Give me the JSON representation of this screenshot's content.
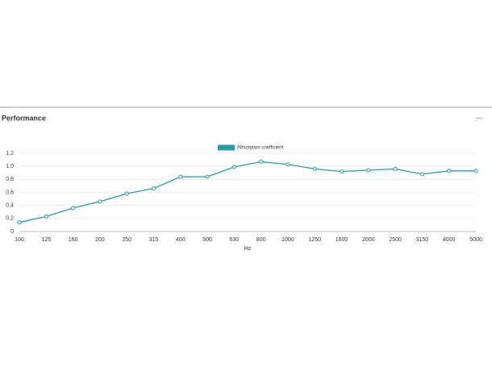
{
  "header": {
    "title": "Performance",
    "menu": "---"
  },
  "chart_data": {
    "type": "line",
    "xlabel": "Hz",
    "categories": [
      "100",
      "125",
      "160",
      "200",
      "250",
      "315",
      "400",
      "500",
      "630",
      "800",
      "1000",
      "1250",
      "1600",
      "2000",
      "2500",
      "3150",
      "4000",
      "5000"
    ],
    "series": [
      {
        "name": "Absorption coefficient",
        "color": "#2a9aa8",
        "values": [
          0.14,
          0.23,
          0.36,
          0.46,
          0.58,
          0.66,
          0.84,
          0.84,
          0.99,
          1.07,
          1.03,
          0.96,
          0.92,
          0.94,
          0.96,
          0.88,
          0.93,
          0.93
        ]
      }
    ],
    "ylim": [
      0,
      1.2
    ],
    "yticks": [
      0,
      {
        "value": 0.2,
        "label": "0,2"
      },
      {
        "value": 0.4,
        "label": "0,4"
      },
      {
        "value": 0.6,
        "label": "0,6"
      },
      {
        "value": 0.8,
        "label": "0,8"
      },
      {
        "value": 1.0,
        "label": "1,0"
      },
      {
        "value": 1.2,
        "label": "1,2"
      }
    ],
    "grid": true,
    "legend": "top"
  }
}
